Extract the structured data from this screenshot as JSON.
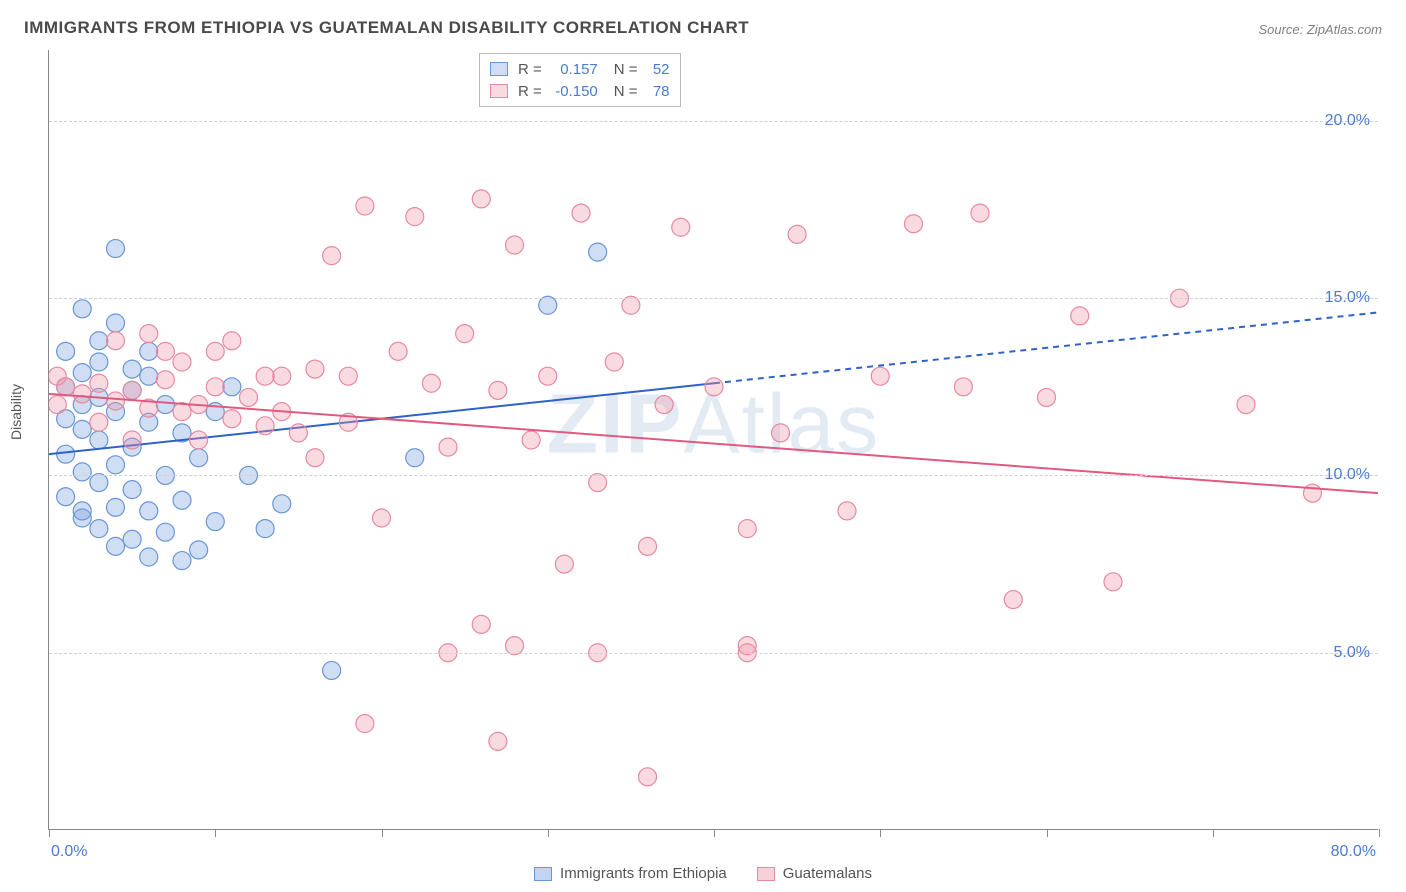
{
  "title": "IMMIGRANTS FROM ETHIOPIA VS GUATEMALAN DISABILITY CORRELATION CHART",
  "source": "Source: ZipAtlas.com",
  "ylabel": "Disability",
  "watermark": {
    "bold": "ZIP",
    "rest": "Atlas"
  },
  "chart": {
    "type": "scatter",
    "xlim": [
      0,
      80
    ],
    "ylim": [
      0,
      22
    ],
    "xtick_positions": [
      0,
      10,
      20,
      30,
      40,
      50,
      60,
      70,
      80
    ],
    "xtick_labels": {
      "0": "0.0%",
      "80": "80.0%"
    },
    "ytick_positions": [
      5,
      10,
      15,
      20
    ],
    "ytick_labels": [
      "5.0%",
      "10.0%",
      "15.0%",
      "20.0%"
    ],
    "grid_color": "#d0d0d0",
    "background_color": "#ffffff",
    "series": [
      {
        "name": "Immigrants from Ethiopia",
        "fill": "rgba(120,160,220,0.35)",
        "stroke": "#6a95d6",
        "marker_radius": 9,
        "R": "0.157",
        "N": "52",
        "trend": {
          "solid": [
            [
              0,
              10.6
            ],
            [
              40,
              12.6
            ]
          ],
          "dashed": [
            [
              40,
              12.6
            ],
            [
              80,
              14.6
            ]
          ],
          "stroke": "#2e62c9",
          "width": 2
        },
        "points": [
          [
            4,
            16.4
          ],
          [
            2,
            14.7
          ],
          [
            4,
            14.3
          ],
          [
            1,
            13.5
          ],
          [
            3,
            13.2
          ],
          [
            2,
            12.9
          ],
          [
            6,
            12.8
          ],
          [
            1,
            12.5
          ],
          [
            5,
            12.4
          ],
          [
            3,
            12.2
          ],
          [
            2,
            12.0
          ],
          [
            7,
            12.0
          ],
          [
            4,
            11.8
          ],
          [
            1,
            11.6
          ],
          [
            6,
            11.5
          ],
          [
            2,
            11.3
          ],
          [
            8,
            11.2
          ],
          [
            3,
            11.0
          ],
          [
            5,
            10.8
          ],
          [
            1,
            10.6
          ],
          [
            9,
            10.5
          ],
          [
            4,
            10.3
          ],
          [
            2,
            10.1
          ],
          [
            7,
            10.0
          ],
          [
            3,
            9.8
          ],
          [
            5,
            9.6
          ],
          [
            1,
            9.4
          ],
          [
            8,
            9.3
          ],
          [
            4,
            9.1
          ],
          [
            6,
            9.0
          ],
          [
            2,
            8.8
          ],
          [
            10,
            8.7
          ],
          [
            3,
            8.5
          ],
          [
            7,
            8.4
          ],
          [
            5,
            8.2
          ],
          [
            4,
            8.0
          ],
          [
            9,
            7.9
          ],
          [
            6,
            7.7
          ],
          [
            8,
            7.6
          ],
          [
            3,
            13.8
          ],
          [
            5,
            13.0
          ],
          [
            22,
            10.5
          ],
          [
            10,
            11.8
          ],
          [
            12,
            10.0
          ],
          [
            14,
            9.2
          ],
          [
            11,
            12.5
          ],
          [
            30,
            14.8
          ],
          [
            33,
            16.3
          ],
          [
            17,
            4.5
          ],
          [
            13,
            8.5
          ],
          [
            2,
            9.0
          ],
          [
            6,
            13.5
          ]
        ]
      },
      {
        "name": "Guatemalans",
        "fill": "rgba(240,150,170,0.35)",
        "stroke": "#e68aa0",
        "marker_radius": 9,
        "R": "-0.150",
        "N": "78",
        "trend": {
          "solid": [
            [
              0,
              12.3
            ],
            [
              80,
              9.5
            ]
          ],
          "stroke": "#e05a80",
          "width": 2
        },
        "points": [
          [
            0.5,
            12.8
          ],
          [
            1,
            12.5
          ],
          [
            2,
            12.3
          ],
          [
            3,
            12.6
          ],
          [
            4,
            12.1
          ],
          [
            5,
            12.4
          ],
          [
            6,
            11.9
          ],
          [
            7,
            12.7
          ],
          [
            8,
            11.8
          ],
          [
            9,
            12.0
          ],
          [
            10,
            12.5
          ],
          [
            11,
            11.6
          ],
          [
            12,
            12.2
          ],
          [
            13,
            11.4
          ],
          [
            14,
            12.8
          ],
          [
            15,
            11.2
          ],
          [
            16,
            13.0
          ],
          [
            17,
            16.2
          ],
          [
            18,
            11.5
          ],
          [
            19,
            17.6
          ],
          [
            20,
            8.8
          ],
          [
            21,
            13.5
          ],
          [
            22,
            17.3
          ],
          [
            23,
            12.6
          ],
          [
            24,
            10.8
          ],
          [
            25,
            14.0
          ],
          [
            26,
            17.8
          ],
          [
            27,
            12.4
          ],
          [
            28,
            16.5
          ],
          [
            29,
            11.0
          ],
          [
            30,
            12.8
          ],
          [
            32,
            17.4
          ],
          [
            33,
            9.8
          ],
          [
            34,
            13.2
          ],
          [
            35,
            14.8
          ],
          [
            36,
            8.0
          ],
          [
            37,
            12.0
          ],
          [
            38,
            17.0
          ],
          [
            40,
            12.5
          ],
          [
            42,
            8.5
          ],
          [
            44,
            11.2
          ],
          [
            45,
            16.8
          ],
          [
            48,
            9.0
          ],
          [
            50,
            12.8
          ],
          [
            52,
            17.1
          ],
          [
            55,
            12.5
          ],
          [
            56,
            17.4
          ],
          [
            58,
            6.5
          ],
          [
            60,
            12.2
          ],
          [
            62,
            14.5
          ],
          [
            64,
            7.0
          ],
          [
            68,
            15.0
          ],
          [
            72,
            12.0
          ],
          [
            76,
            9.5
          ],
          [
            4,
            13.8
          ],
          [
            6,
            14.0
          ],
          [
            8,
            13.2
          ],
          [
            10,
            13.5
          ],
          [
            3,
            11.5
          ],
          [
            5,
            11.0
          ],
          [
            19,
            3.0
          ],
          [
            24,
            5.0
          ],
          [
            27,
            2.5
          ],
          [
            28,
            5.2
          ],
          [
            31,
            7.5
          ],
          [
            36,
            1.5
          ],
          [
            42,
            5.0
          ],
          [
            42,
            5.2
          ],
          [
            26,
            5.8
          ],
          [
            33,
            5.0
          ],
          [
            14,
            11.8
          ],
          [
            16,
            10.5
          ],
          [
            18,
            12.8
          ],
          [
            13,
            12.8
          ],
          [
            11,
            13.8
          ],
          [
            9,
            11.0
          ],
          [
            7,
            13.5
          ],
          [
            0.5,
            12.0
          ]
        ]
      }
    ],
    "legend_bottom": [
      {
        "label": "Immigrants from Ethiopia",
        "fill": "rgba(120,160,220,0.45)",
        "stroke": "#6a95d6"
      },
      {
        "label": "Guatemalans",
        "fill": "rgba(240,150,170,0.45)",
        "stroke": "#e68aa0"
      }
    ]
  }
}
